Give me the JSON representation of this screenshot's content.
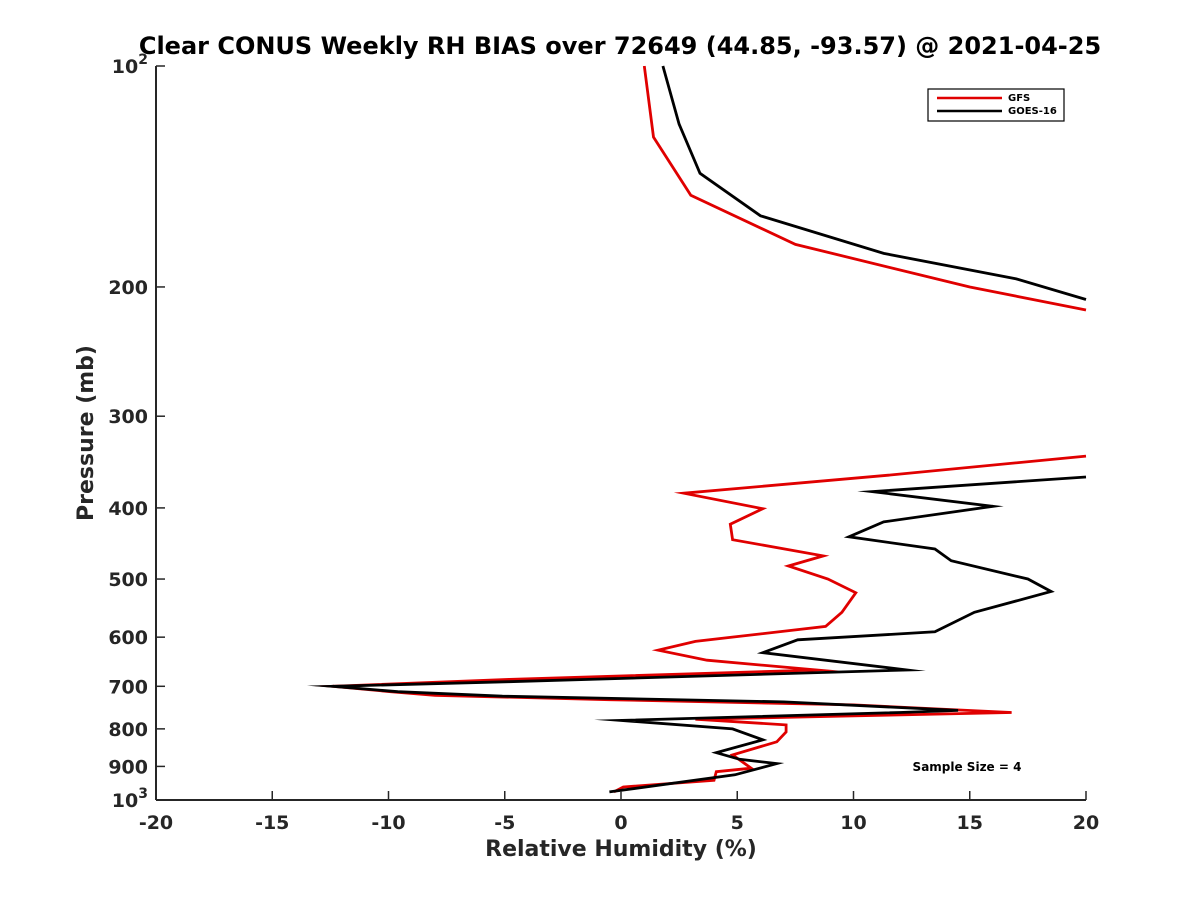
{
  "chart_data": {
    "type": "line",
    "title": "Clear CONUS Weekly RH BIAS over 72649 (44.85, -93.57) @ 2021-04-25",
    "xlabel": "Relative Humidity (%)",
    "ylabel": "Pressure (mb)",
    "xlim": [
      -20,
      20
    ],
    "ylim": [
      1000,
      100
    ],
    "y_scale": "log",
    "y_reversed": true,
    "grid": false,
    "legend_position": "top-right",
    "x_ticks": [
      -20,
      -15,
      -10,
      -5,
      0,
      5,
      10,
      15,
      20
    ],
    "x_tick_labels": [
      "-20",
      "-15",
      "-10",
      "-5",
      "0",
      "5",
      "10",
      "15",
      "20"
    ],
    "y_ticks": [
      100,
      200,
      300,
      400,
      500,
      600,
      700,
      800,
      900,
      1000
    ],
    "y_tick_labels": [
      {
        "base": "10",
        "sup": "2"
      },
      {
        "base": "200",
        "sup": ""
      },
      {
        "base": "300",
        "sup": ""
      },
      {
        "base": "400",
        "sup": ""
      },
      {
        "base": "500",
        "sup": ""
      },
      {
        "base": "600",
        "sup": ""
      },
      {
        "base": "700",
        "sup": ""
      },
      {
        "base": "800",
        "sup": ""
      },
      {
        "base": "900",
        "sup": ""
      },
      {
        "base": "10",
        "sup": "3"
      }
    ],
    "annotation": "Sample Size = 4",
    "series": [
      {
        "name": "GFS",
        "color": "#e00000",
        "points": [
          [
            1.0,
            100
          ],
          [
            1.4,
            125
          ],
          [
            3.0,
            150
          ],
          [
            7.5,
            175
          ],
          [
            15.0,
            200
          ],
          [
            20.0,
            215
          ],
          [
            null,
            null
          ],
          [
            20.0,
            340
          ],
          [
            11.5,
            361
          ],
          [
            2.7,
            382
          ],
          [
            6.1,
            401
          ],
          [
            4.7,
            421
          ],
          [
            4.8,
            442
          ],
          [
            8.7,
            465
          ],
          [
            7.2,
            480
          ],
          [
            8.9,
            500
          ],
          [
            10.1,
            522
          ],
          [
            9.5,
            555
          ],
          [
            8.8,
            580
          ],
          [
            3.2,
            608
          ],
          [
            1.6,
            625
          ],
          [
            3.7,
            645
          ],
          [
            8.4,
            665
          ],
          [
            -4.8,
            685
          ],
          [
            -12.4,
            700
          ],
          [
            -9.9,
            712
          ],
          [
            -8.0,
            720
          ],
          [
            -0.5,
            730
          ],
          [
            10.0,
            742
          ],
          [
            16.8,
            760
          ],
          [
            10.0,
            768
          ],
          [
            3.2,
            776
          ],
          [
            7.1,
            790
          ],
          [
            7.1,
            808
          ],
          [
            6.7,
            833
          ],
          [
            4.8,
            868
          ],
          [
            5.6,
            905
          ],
          [
            4.1,
            915
          ],
          [
            4.0,
            940
          ],
          [
            0.1,
            960
          ],
          [
            -0.3,
            975
          ]
        ]
      },
      {
        "name": "GOES-16",
        "color": "#000000",
        "points": [
          [
            1.8,
            100
          ],
          [
            2.5,
            120
          ],
          [
            3.4,
            140
          ],
          [
            6.0,
            160
          ],
          [
            11.3,
            180
          ],
          [
            17.0,
            195
          ],
          [
            20.0,
            208
          ],
          [
            null,
            null
          ],
          [
            20.0,
            363
          ],
          [
            10.8,
            380
          ],
          [
            16.0,
            398
          ],
          [
            11.3,
            418
          ],
          [
            9.8,
            438
          ],
          [
            13.5,
            455
          ],
          [
            14.2,
            472
          ],
          [
            17.5,
            500
          ],
          [
            18.5,
            520
          ],
          [
            15.2,
            555
          ],
          [
            13.5,
            590
          ],
          [
            7.6,
            605
          ],
          [
            6.1,
            630
          ],
          [
            12.3,
            665
          ],
          [
            -4.8,
            690
          ],
          [
            -12.4,
            700
          ],
          [
            -9.6,
            712
          ],
          [
            -5.1,
            722
          ],
          [
            7.0,
            735
          ],
          [
            14.5,
            755
          ],
          [
            12.0,
            760
          ],
          [
            0.0,
            779
          ],
          [
            4.8,
            800
          ],
          [
            6.1,
            828
          ],
          [
            4.1,
            862
          ],
          [
            5.1,
            880
          ],
          [
            6.7,
            892
          ],
          [
            4.9,
            924
          ],
          [
            -0.5,
            975
          ]
        ]
      }
    ]
  }
}
